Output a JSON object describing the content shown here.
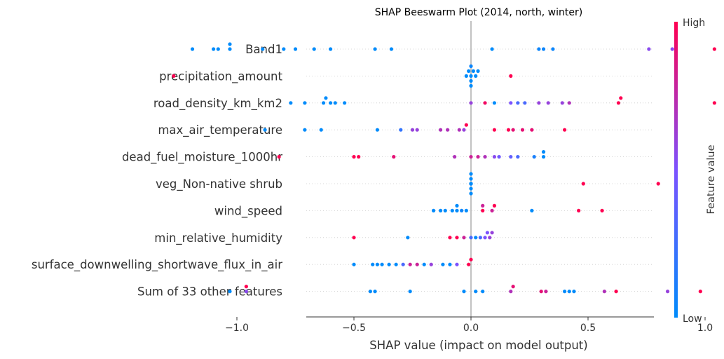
{
  "chart_data": {
    "type": "scatter",
    "subtype": "shap-beeswarm",
    "title": "SHAP Beeswarm Plot (2014, north, winter)",
    "xlabel": "SHAP value (impact on model output)",
    "xlim": [
      -1.4,
      1.53
    ],
    "xticks": [
      -1.0,
      -0.5,
      0.0,
      0.5,
      1.0,
      1.5
    ],
    "xtick_labels": [
      "−1.0",
      "−0.5",
      "0.0",
      "0.5",
      "1.0",
      "1.5"
    ],
    "colorbar": {
      "title": "Feature value",
      "high_label": "High",
      "low_label": "Low",
      "low_color": "#008bfb",
      "high_color": "#ff0051",
      "placement": "right"
    },
    "features": [
      {
        "name": "Band1",
        "points": [
          {
            "x": -1.19,
            "c": 0.0
          },
          {
            "x": -1.1,
            "c": 0.0
          },
          {
            "x": -1.08,
            "c": 0.0
          },
          {
            "x": -1.03,
            "c": 0.0
          },
          {
            "x": -1.03,
            "c": 0.0
          },
          {
            "x": -0.89,
            "c": 0.0
          },
          {
            "x": -0.8,
            "c": 0.0
          },
          {
            "x": -0.75,
            "c": 0.0
          },
          {
            "x": -0.67,
            "c": 0.0
          },
          {
            "x": -0.6,
            "c": 0.0
          },
          {
            "x": -0.41,
            "c": 0.0
          },
          {
            "x": -0.34,
            "c": 0.0
          },
          {
            "x": 0.09,
            "c": 0.0
          },
          {
            "x": 0.29,
            "c": 0.05
          },
          {
            "x": 0.31,
            "c": 0.05
          },
          {
            "x": 0.35,
            "c": 0.05
          },
          {
            "x": 0.76,
            "c": 0.55
          },
          {
            "x": 0.86,
            "c": 0.55
          },
          {
            "x": 1.04,
            "c": 1.0
          },
          {
            "x": 1.25,
            "c": 1.0
          },
          {
            "x": 1.4,
            "c": 1.0
          }
        ]
      },
      {
        "name": "precipitation_amount",
        "points": [
          {
            "x": -1.27,
            "c": 1.0
          },
          {
            "x": 0.0,
            "c": 0.0
          },
          {
            "x": 0.0,
            "c": 0.0
          },
          {
            "x": 0.02,
            "c": 0.0
          },
          {
            "x": -0.01,
            "c": 0.0
          },
          {
            "x": 0.01,
            "c": 0.0
          },
          {
            "x": 0.0,
            "c": 0.05
          },
          {
            "x": 0.03,
            "c": 0.0
          },
          {
            "x": -0.02,
            "c": 0.0
          },
          {
            "x": 0.0,
            "c": 0.0
          },
          {
            "x": 0.17,
            "c": 1.0
          }
        ]
      },
      {
        "name": "road_density_km_km2",
        "points": [
          {
            "x": -0.77,
            "c": 0.0
          },
          {
            "x": -0.71,
            "c": 0.0
          },
          {
            "x": -0.63,
            "c": 0.0
          },
          {
            "x": -0.62,
            "c": 0.0
          },
          {
            "x": -0.6,
            "c": 0.0
          },
          {
            "x": -0.58,
            "c": 0.0
          },
          {
            "x": -0.54,
            "c": 0.0
          },
          {
            "x": 0.0,
            "c": 0.6
          },
          {
            "x": 0.06,
            "c": 0.95
          },
          {
            "x": 0.1,
            "c": 0.0
          },
          {
            "x": 0.17,
            "c": 0.5
          },
          {
            "x": 0.2,
            "c": 0.3
          },
          {
            "x": 0.23,
            "c": 0.3
          },
          {
            "x": 0.29,
            "c": 0.6
          },
          {
            "x": 0.33,
            "c": 0.6
          },
          {
            "x": 0.39,
            "c": 0.6
          },
          {
            "x": 0.42,
            "c": 0.7
          },
          {
            "x": 0.63,
            "c": 1.0
          },
          {
            "x": 0.64,
            "c": 1.0
          },
          {
            "x": 1.04,
            "c": 1.0
          }
        ]
      },
      {
        "name": "max_air_temperature",
        "points": [
          {
            "x": -0.88,
            "c": 0.0
          },
          {
            "x": -0.71,
            "c": 0.0
          },
          {
            "x": -0.64,
            "c": 0.0
          },
          {
            "x": -0.4,
            "c": 0.0
          },
          {
            "x": -0.3,
            "c": 0.2
          },
          {
            "x": -0.25,
            "c": 0.6
          },
          {
            "x": -0.23,
            "c": 0.6
          },
          {
            "x": -0.13,
            "c": 0.7
          },
          {
            "x": -0.1,
            "c": 0.7
          },
          {
            "x": -0.05,
            "c": 0.7
          },
          {
            "x": -0.03,
            "c": 0.6
          },
          {
            "x": -0.02,
            "c": 1.0
          },
          {
            "x": 0.1,
            "c": 1.0
          },
          {
            "x": 0.16,
            "c": 1.0
          },
          {
            "x": 0.18,
            "c": 0.9
          },
          {
            "x": 0.22,
            "c": 0.9
          },
          {
            "x": 0.26,
            "c": 0.9
          },
          {
            "x": 0.4,
            "c": 1.0
          }
        ]
      },
      {
        "name": "dead_fuel_moisture_1000hr",
        "points": [
          {
            "x": -0.82,
            "c": 1.0
          },
          {
            "x": -0.5,
            "c": 1.0
          },
          {
            "x": -0.48,
            "c": 1.0
          },
          {
            "x": -0.33,
            "c": 0.9
          },
          {
            "x": -0.07,
            "c": 0.7
          },
          {
            "x": 0.0,
            "c": 0.8
          },
          {
            "x": 0.03,
            "c": 0.8
          },
          {
            "x": 0.06,
            "c": 0.7
          },
          {
            "x": 0.1,
            "c": 0.55
          },
          {
            "x": 0.12,
            "c": 0.45
          },
          {
            "x": 0.17,
            "c": 0.4
          },
          {
            "x": 0.2,
            "c": 0.3
          },
          {
            "x": 0.27,
            "c": 0.1
          },
          {
            "x": 0.31,
            "c": 0.0
          },
          {
            "x": 0.31,
            "c": 0.0
          }
        ]
      },
      {
        "name": "veg_Non-native shrub",
        "points": [
          {
            "x": 0.0,
            "c": 0.0
          },
          {
            "x": 0.0,
            "c": 0.0
          },
          {
            "x": 0.0,
            "c": 0.0
          },
          {
            "x": 0.0,
            "c": 0.0
          },
          {
            "x": 0.0,
            "c": 0.0
          },
          {
            "x": 0.0,
            "c": 0.0
          },
          {
            "x": 0.0,
            "c": 0.0
          },
          {
            "x": 0.0,
            "c": 0.0
          },
          {
            "x": 0.0,
            "c": 0.0
          },
          {
            "x": 0.0,
            "c": 0.0
          },
          {
            "x": 0.48,
            "c": 1.0
          },
          {
            "x": 0.8,
            "c": 1.0
          }
        ]
      },
      {
        "name": "wind_speed",
        "points": [
          {
            "x": -0.16,
            "c": 0.0
          },
          {
            "x": -0.13,
            "c": 0.0
          },
          {
            "x": -0.11,
            "c": 0.0
          },
          {
            "x": -0.08,
            "c": 0.0
          },
          {
            "x": -0.06,
            "c": 0.0
          },
          {
            "x": -0.04,
            "c": 0.05
          },
          {
            "x": -0.06,
            "c": 0.0
          },
          {
            "x": -0.02,
            "c": 0.0
          },
          {
            "x": 0.05,
            "c": 1.0
          },
          {
            "x": 0.05,
            "c": 0.8
          },
          {
            "x": 0.09,
            "c": 0.8
          },
          {
            "x": 0.1,
            "c": 1.0
          },
          {
            "x": 0.26,
            "c": 0.0
          },
          {
            "x": 0.46,
            "c": 1.0
          },
          {
            "x": 0.56,
            "c": 1.0
          }
        ]
      },
      {
        "name": "min_relative_humidity",
        "points": [
          {
            "x": -0.5,
            "c": 1.0
          },
          {
            "x": -0.27,
            "c": 0.0
          },
          {
            "x": -0.09,
            "c": 1.0
          },
          {
            "x": -0.06,
            "c": 1.0
          },
          {
            "x": -0.03,
            "c": 0.8
          },
          {
            "x": 0.0,
            "c": 0.3
          },
          {
            "x": 0.02,
            "c": 0.0
          },
          {
            "x": 0.04,
            "c": 0.3
          },
          {
            "x": 0.06,
            "c": 0.5
          },
          {
            "x": 0.07,
            "c": 0.5
          },
          {
            "x": 0.08,
            "c": 0.6
          },
          {
            "x": 0.09,
            "c": 0.6
          }
        ]
      },
      {
        "name": "surface_downwelling_shortwave_flux_in_air",
        "points": [
          {
            "x": -0.5,
            "c": 0.0
          },
          {
            "x": -0.42,
            "c": 0.0
          },
          {
            "x": -0.4,
            "c": 0.0
          },
          {
            "x": -0.38,
            "c": 0.0
          },
          {
            "x": -0.35,
            "c": 0.0
          },
          {
            "x": -0.32,
            "c": 0.0
          },
          {
            "x": -0.29,
            "c": 0.3
          },
          {
            "x": -0.26,
            "c": 0.8
          },
          {
            "x": -0.23,
            "c": 0.8
          },
          {
            "x": -0.2,
            "c": 0.0
          },
          {
            "x": -0.17,
            "c": 0.6
          },
          {
            "x": -0.12,
            "c": 0.0
          },
          {
            "x": -0.09,
            "c": 0.0
          },
          {
            "x": -0.06,
            "c": 0.5
          },
          {
            "x": -0.01,
            "c": 1.0
          },
          {
            "x": 0.0,
            "c": 1.0
          }
        ]
      },
      {
        "name": "Sum of 33 other features",
        "points": [
          {
            "x": -1.03,
            "c": 0.0
          },
          {
            "x": -0.96,
            "c": 0.55
          },
          {
            "x": -0.96,
            "c": 1.0
          },
          {
            "x": -0.43,
            "c": 0.0
          },
          {
            "x": -0.41,
            "c": 0.0
          },
          {
            "x": -0.26,
            "c": 0.0
          },
          {
            "x": -0.03,
            "c": 0.0
          },
          {
            "x": 0.02,
            "c": 0.0
          },
          {
            "x": 0.05,
            "c": 0.0
          },
          {
            "x": 0.17,
            "c": 0.7
          },
          {
            "x": 0.18,
            "c": 0.9
          },
          {
            "x": 0.3,
            "c": 0.9
          },
          {
            "x": 0.32,
            "c": 0.8
          },
          {
            "x": 0.4,
            "c": 0.0
          },
          {
            "x": 0.42,
            "c": 0.0
          },
          {
            "x": 0.44,
            "c": 0.0
          },
          {
            "x": 0.57,
            "c": 0.7
          },
          {
            "x": 0.62,
            "c": 1.0
          },
          {
            "x": 0.84,
            "c": 0.6
          },
          {
            "x": 0.98,
            "c": 1.0
          },
          {
            "x": 1.12,
            "c": 0.8
          }
        ]
      }
    ]
  }
}
